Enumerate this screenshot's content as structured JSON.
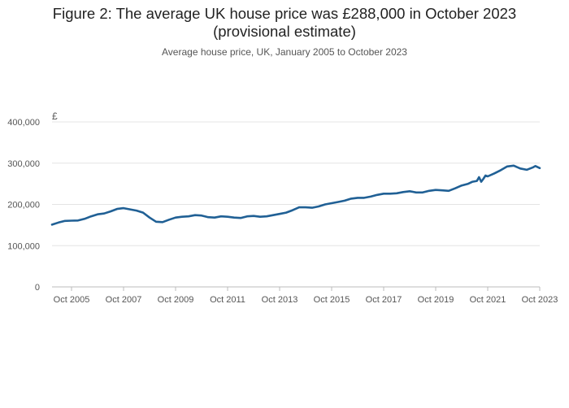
{
  "chart_data": {
    "type": "line",
    "title": "Figure 2: The average UK house price was £288,000 in October 2023",
    "title_line2": "(provisional estimate)",
    "subtitle": "Average house price, UK, January 2005 to October 2023",
    "ylabel": "£",
    "xlabel": "",
    "ylim": [
      0,
      400000
    ],
    "xlim": [
      "2005-01",
      "2023-10"
    ],
    "grid": true,
    "yticks": [
      0,
      100000,
      200000,
      300000,
      400000
    ],
    "ytick_labels": [
      "0",
      "100,000",
      "200,000",
      "300,000",
      "400,000"
    ],
    "xticks": [
      "2005-10",
      "2007-10",
      "2009-10",
      "2011-10",
      "2013-10",
      "2015-10",
      "2017-10",
      "2019-10",
      "2021-10",
      "2023-10"
    ],
    "xtick_labels": [
      "Oct 2005",
      "Oct 2007",
      "Oct 2009",
      "Oct 2011",
      "Oct 2013",
      "Oct 2015",
      "Oct 2017",
      "Oct 2019",
      "Oct 2021",
      "Oct 2023"
    ],
    "line_color": "#206095",
    "series": [
      {
        "points": [
          [
            "2005-01",
            151000
          ],
          [
            "2005-04",
            156000
          ],
          [
            "2005-07",
            160000
          ],
          [
            "2005-10",
            160500
          ],
          [
            "2006-01",
            161000
          ],
          [
            "2006-04",
            165000
          ],
          [
            "2006-07",
            171000
          ],
          [
            "2006-10",
            176000
          ],
          [
            "2007-01",
            178000
          ],
          [
            "2007-04",
            183000
          ],
          [
            "2007-07",
            189000
          ],
          [
            "2007-10",
            191000
          ],
          [
            "2008-01",
            188000
          ],
          [
            "2008-04",
            185000
          ],
          [
            "2008-07",
            180000
          ],
          [
            "2008-10",
            168000
          ],
          [
            "2009-01",
            158000
          ],
          [
            "2009-04",
            157000
          ],
          [
            "2009-07",
            163000
          ],
          [
            "2009-10",
            168000
          ],
          [
            "2010-01",
            170000
          ],
          [
            "2010-04",
            171000
          ],
          [
            "2010-07",
            174000
          ],
          [
            "2010-10",
            173000
          ],
          [
            "2011-01",
            169000
          ],
          [
            "2011-04",
            168000
          ],
          [
            "2011-07",
            171000
          ],
          [
            "2011-10",
            170000
          ],
          [
            "2012-01",
            168000
          ],
          [
            "2012-04",
            167000
          ],
          [
            "2012-07",
            171000
          ],
          [
            "2012-10",
            172000
          ],
          [
            "2013-01",
            170000
          ],
          [
            "2013-04",
            171000
          ],
          [
            "2013-07",
            174000
          ],
          [
            "2013-10",
            177000
          ],
          [
            "2014-01",
            180000
          ],
          [
            "2014-04",
            186000
          ],
          [
            "2014-07",
            193000
          ],
          [
            "2014-10",
            193000
          ],
          [
            "2015-01",
            192000
          ],
          [
            "2015-04",
            195000
          ],
          [
            "2015-07",
            200000
          ],
          [
            "2015-10",
            203000
          ],
          [
            "2016-01",
            206000
          ],
          [
            "2016-04",
            209000
          ],
          [
            "2016-07",
            214000
          ],
          [
            "2016-10",
            216000
          ],
          [
            "2017-01",
            216000
          ],
          [
            "2017-04",
            219000
          ],
          [
            "2017-07",
            223000
          ],
          [
            "2017-10",
            226000
          ],
          [
            "2018-01",
            226000
          ],
          [
            "2018-04",
            227000
          ],
          [
            "2018-07",
            230000
          ],
          [
            "2018-10",
            232000
          ],
          [
            "2019-01",
            229000
          ],
          [
            "2019-04",
            229000
          ],
          [
            "2019-07",
            233000
          ],
          [
            "2019-10",
            235000
          ],
          [
            "2020-01",
            234000
          ],
          [
            "2020-04",
            233000
          ],
          [
            "2020-07",
            239000
          ],
          [
            "2020-10",
            246000
          ],
          [
            "2021-01",
            250000
          ],
          [
            "2021-03",
            255000
          ],
          [
            "2021-05",
            257000
          ],
          [
            "2021-06",
            266000
          ],
          [
            "2021-07",
            255000
          ],
          [
            "2021-08",
            262000
          ],
          [
            "2021-09",
            270000
          ],
          [
            "2021-10",
            268000
          ],
          [
            "2022-01",
            275000
          ],
          [
            "2022-04",
            283000
          ],
          [
            "2022-07",
            292000
          ],
          [
            "2022-10",
            294000
          ],
          [
            "2023-01",
            287000
          ],
          [
            "2023-04",
            284000
          ],
          [
            "2023-07",
            290000
          ],
          [
            "2023-08",
            293000
          ],
          [
            "2023-10",
            288000
          ]
        ]
      }
    ]
  }
}
